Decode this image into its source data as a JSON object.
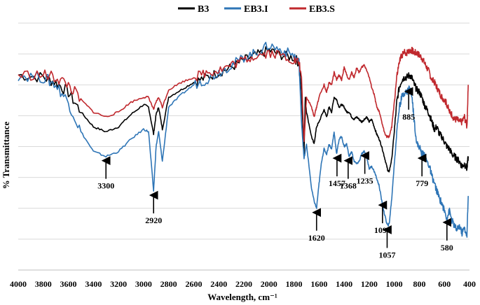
{
  "chart_data": {
    "type": "line",
    "title": "",
    "xlabel": "Wavelength, cm⁻¹",
    "ylabel": "% Transmittance",
    "xlim": [
      4000,
      400
    ],
    "x_reversed": true,
    "ylim": [
      0,
      100
    ],
    "x_ticks": [
      4000,
      3800,
      3600,
      3400,
      3200,
      3000,
      2800,
      2600,
      2400,
      2200,
      2000,
      1800,
      1600,
      1400,
      1200,
      1000,
      800,
      600,
      400
    ],
    "y_ticks_labeled": false,
    "grid": "horizontal",
    "legend_position": "top",
    "series": [
      {
        "name": "B3",
        "color": "#000000",
        "points": [
          [
            4000,
            79
          ],
          [
            3800,
            78
          ],
          [
            3700,
            76
          ],
          [
            3600,
            72
          ],
          [
            3500,
            64
          ],
          [
            3400,
            58
          ],
          [
            3300,
            56
          ],
          [
            3200,
            58
          ],
          [
            3100,
            63
          ],
          [
            3000,
            67
          ],
          [
            2960,
            66
          ],
          [
            2920,
            55
          ],
          [
            2900,
            63
          ],
          [
            2880,
            66
          ],
          [
            2850,
            57
          ],
          [
            2800,
            70
          ],
          [
            2700,
            73
          ],
          [
            2600,
            76
          ],
          [
            2500,
            78
          ],
          [
            2400,
            80
          ],
          [
            2300,
            82
          ],
          [
            2200,
            85
          ],
          [
            2100,
            87
          ],
          [
            2000,
            89
          ],
          [
            1900,
            87
          ],
          [
            1800,
            86
          ],
          [
            1760,
            84
          ],
          [
            1740,
            72
          ],
          [
            1720,
            47
          ],
          [
            1710,
            70
          ],
          [
            1700,
            64
          ],
          [
            1660,
            54
          ],
          [
            1640,
            51
          ],
          [
            1620,
            58
          ],
          [
            1600,
            60
          ],
          [
            1560,
            65
          ],
          [
            1540,
            62
          ],
          [
            1520,
            66
          ],
          [
            1500,
            64
          ],
          [
            1480,
            70
          ],
          [
            1460,
            69
          ],
          [
            1440,
            66
          ],
          [
            1420,
            67
          ],
          [
            1400,
            66
          ],
          [
            1380,
            64
          ],
          [
            1360,
            64
          ],
          [
            1340,
            62
          ],
          [
            1320,
            61
          ],
          [
            1300,
            62
          ],
          [
            1280,
            61
          ],
          [
            1260,
            60
          ],
          [
            1240,
            61
          ],
          [
            1220,
            62
          ],
          [
            1200,
            60
          ],
          [
            1180,
            61
          ],
          [
            1160,
            58
          ],
          [
            1140,
            55
          ],
          [
            1120,
            53
          ],
          [
            1100,
            50
          ],
          [
            1080,
            46
          ],
          [
            1060,
            42
          ],
          [
            1050,
            40
          ],
          [
            1040,
            40
          ],
          [
            1020,
            45
          ],
          [
            1000,
            56
          ],
          [
            980,
            68
          ],
          [
            960,
            74
          ],
          [
            940,
            77
          ],
          [
            920,
            78
          ],
          [
            900,
            78
          ],
          [
            880,
            79
          ],
          [
            860,
            78
          ],
          [
            840,
            75
          ],
          [
            820,
            73
          ],
          [
            800,
            72
          ],
          [
            780,
            70
          ],
          [
            760,
            67
          ],
          [
            740,
            65
          ],
          [
            720,
            63
          ],
          [
            700,
            60
          ],
          [
            680,
            57
          ],
          [
            660,
            58
          ],
          [
            640,
            55
          ],
          [
            620,
            54
          ],
          [
            600,
            52
          ],
          [
            580,
            50
          ],
          [
            560,
            49
          ],
          [
            540,
            47
          ],
          [
            520,
            46
          ],
          [
            500,
            45
          ],
          [
            480,
            44
          ],
          [
            460,
            42
          ],
          [
            440,
            43
          ],
          [
            420,
            41
          ],
          [
            410,
            46
          ]
        ]
      },
      {
        "name": "EB3.I",
        "color": "#2e75b6",
        "points": [
          [
            4000,
            79
          ],
          [
            3800,
            78
          ],
          [
            3700,
            75
          ],
          [
            3600,
            68
          ],
          [
            3500,
            56
          ],
          [
            3400,
            48
          ],
          [
            3300,
            46
          ],
          [
            3200,
            48
          ],
          [
            3100,
            53
          ],
          [
            3000,
            57
          ],
          [
            2960,
            56
          ],
          [
            2920,
            32
          ],
          [
            2900,
            50
          ],
          [
            2880,
            56
          ],
          [
            2850,
            44
          ],
          [
            2800,
            66
          ],
          [
            2700,
            71
          ],
          [
            2600,
            75
          ],
          [
            2500,
            77
          ],
          [
            2400,
            80
          ],
          [
            2300,
            83
          ],
          [
            2200,
            86
          ],
          [
            2100,
            88
          ],
          [
            2000,
            91
          ],
          [
            1900,
            89
          ],
          [
            1800,
            87
          ],
          [
            1760,
            84
          ],
          [
            1740,
            60
          ],
          [
            1720,
            45
          ],
          [
            1700,
            51
          ],
          [
            1660,
            33
          ],
          [
            1640,
            28
          ],
          [
            1620,
            25
          ],
          [
            1600,
            35
          ],
          [
            1580,
            44
          ],
          [
            1560,
            49
          ],
          [
            1540,
            47
          ],
          [
            1520,
            51
          ],
          [
            1500,
            49
          ],
          [
            1480,
            56
          ],
          [
            1460,
            47
          ],
          [
            1440,
            53
          ],
          [
            1420,
            54
          ],
          [
            1400,
            50
          ],
          [
            1380,
            51
          ],
          [
            1360,
            46
          ],
          [
            1340,
            48
          ],
          [
            1320,
            44
          ],
          [
            1300,
            43
          ],
          [
            1280,
            44
          ],
          [
            1260,
            47
          ],
          [
            1240,
            48
          ],
          [
            1220,
            46
          ],
          [
            1200,
            41
          ],
          [
            1180,
            42
          ],
          [
            1160,
            40
          ],
          [
            1140,
            37
          ],
          [
            1120,
            34
          ],
          [
            1100,
            28
          ],
          [
            1080,
            23
          ],
          [
            1060,
            19
          ],
          [
            1050,
            18
          ],
          [
            1040,
            19
          ],
          [
            1020,
            29
          ],
          [
            1000,
            43
          ],
          [
            980,
            56
          ],
          [
            960,
            66
          ],
          [
            940,
            70
          ],
          [
            920,
            72
          ],
          [
            900,
            72
          ],
          [
            880,
            74
          ],
          [
            860,
            71
          ],
          [
            840,
            60
          ],
          [
            820,
            51
          ],
          [
            800,
            50
          ],
          [
            780,
            47
          ],
          [
            760,
            47
          ],
          [
            740,
            44
          ],
          [
            720,
            42
          ],
          [
            700,
            38
          ],
          [
            680,
            35
          ],
          [
            660,
            32
          ],
          [
            640,
            29
          ],
          [
            620,
            27
          ],
          [
            600,
            24
          ],
          [
            580,
            21
          ],
          [
            560,
            24
          ],
          [
            540,
            20
          ],
          [
            520,
            18
          ],
          [
            500,
            16
          ],
          [
            480,
            18
          ],
          [
            460,
            15
          ],
          [
            440,
            17
          ],
          [
            420,
            14
          ],
          [
            410,
            30
          ]
        ]
      },
      {
        "name": "EB3.S",
        "color": "#c0282d",
        "points": [
          [
            4000,
            79
          ],
          [
            3800,
            79
          ],
          [
            3700,
            78
          ],
          [
            3600,
            75
          ],
          [
            3500,
            69
          ],
          [
            3400,
            64
          ],
          [
            3300,
            62
          ],
          [
            3200,
            64
          ],
          [
            3100,
            68
          ],
          [
            3000,
            70
          ],
          [
            2960,
            70
          ],
          [
            2920,
            65
          ],
          [
            2900,
            68
          ],
          [
            2880,
            70
          ],
          [
            2850,
            66
          ],
          [
            2800,
            73
          ],
          [
            2700,
            76
          ],
          [
            2600,
            78
          ],
          [
            2500,
            80
          ],
          [
            2400,
            81
          ],
          [
            2300,
            83
          ],
          [
            2200,
            85
          ],
          [
            2100,
            87
          ],
          [
            2000,
            88
          ],
          [
            1900,
            87
          ],
          [
            1800,
            85
          ],
          [
            1760,
            84
          ],
          [
            1740,
            78
          ],
          [
            1720,
            52
          ],
          [
            1700,
            70
          ],
          [
            1660,
            66
          ],
          [
            1640,
            62
          ],
          [
            1620,
            66
          ],
          [
            1600,
            70
          ],
          [
            1560,
            75
          ],
          [
            1540,
            72
          ],
          [
            1520,
            76
          ],
          [
            1500,
            75
          ],
          [
            1480,
            80
          ],
          [
            1460,
            77
          ],
          [
            1440,
            79
          ],
          [
            1420,
            77
          ],
          [
            1400,
            82
          ],
          [
            1380,
            79
          ],
          [
            1360,
            77
          ],
          [
            1340,
            80
          ],
          [
            1320,
            78
          ],
          [
            1300,
            82
          ],
          [
            1280,
            80
          ],
          [
            1260,
            82
          ],
          [
            1240,
            83
          ],
          [
            1220,
            81
          ],
          [
            1200,
            78
          ],
          [
            1180,
            74
          ],
          [
            1160,
            71
          ],
          [
            1140,
            66
          ],
          [
            1120,
            64
          ],
          [
            1100,
            60
          ],
          [
            1080,
            56
          ],
          [
            1060,
            54
          ],
          [
            1050,
            54
          ],
          [
            1040,
            54
          ],
          [
            1020,
            58
          ],
          [
            1000,
            68
          ],
          [
            980,
            78
          ],
          [
            960,
            84
          ],
          [
            940,
            87
          ],
          [
            920,
            88
          ],
          [
            900,
            88
          ],
          [
            880,
            89
          ],
          [
            860,
            89
          ],
          [
            840,
            88
          ],
          [
            820,
            88
          ],
          [
            800,
            87
          ],
          [
            780,
            86
          ],
          [
            760,
            84
          ],
          [
            740,
            82
          ],
          [
            720,
            80
          ],
          [
            700,
            77
          ],
          [
            680,
            76
          ],
          [
            660,
            74
          ],
          [
            640,
            72
          ],
          [
            620,
            70
          ],
          [
            600,
            69
          ],
          [
            580,
            67
          ],
          [
            560,
            64
          ],
          [
            540,
            63
          ],
          [
            520,
            61
          ],
          [
            500,
            61
          ],
          [
            480,
            60
          ],
          [
            460,
            60
          ],
          [
            440,
            62
          ],
          [
            420,
            58
          ],
          [
            410,
            75
          ]
        ]
      }
    ],
    "annotations": [
      {
        "label": "3300",
        "x": 3300,
        "y": 46
      },
      {
        "label": "2920",
        "x": 2920,
        "y": 32
      },
      {
        "label": "1620",
        "x": 1620,
        "y": 25
      },
      {
        "label": "1457",
        "x": 1457,
        "y": 47
      },
      {
        "label": "1368",
        "x": 1368,
        "y": 46
      },
      {
        "label": "1235",
        "x": 1235,
        "y": 48
      },
      {
        "label": "1094",
        "x": 1094,
        "y": 28
      },
      {
        "label": "1057",
        "x": 1057,
        "y": 18
      },
      {
        "label": "885",
        "x": 885,
        "y": 74
      },
      {
        "label": "779",
        "x": 779,
        "y": 47
      },
      {
        "label": "580",
        "x": 580,
        "y": 21
      }
    ]
  }
}
